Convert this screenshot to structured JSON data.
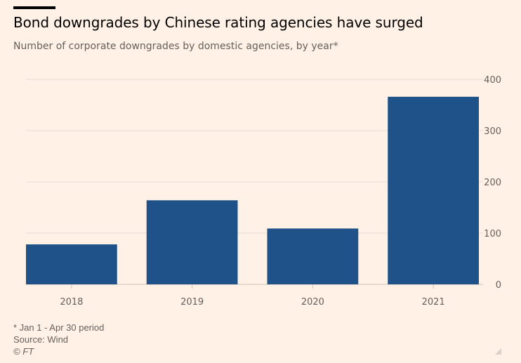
{
  "header": {
    "title": "Bond downgrades by Chinese rating agencies have surged",
    "subtitle": "Number of corporate downgrades by domestic agencies, by year*"
  },
  "chart_data": {
    "type": "bar",
    "title": "Bond downgrades by Chinese rating agencies have surged",
    "subtitle": "Number of corporate downgrades by domestic agencies, by year*",
    "categories": [
      "2018",
      "2019",
      "2020",
      "2021"
    ],
    "values": [
      78,
      164,
      109,
      366
    ],
    "xlabel": "",
    "ylabel": "",
    "ylim": [
      0,
      400
    ],
    "yticks": [
      0,
      100,
      200,
      300,
      400
    ],
    "y_axis_side": "right",
    "grid": true,
    "bar_color": "#1f5288",
    "grid_color": "#e9dcd2"
  },
  "footer": {
    "note": "* Jan 1 - Apr 30 period",
    "source": "Source: Wind",
    "credit": "© FT"
  }
}
